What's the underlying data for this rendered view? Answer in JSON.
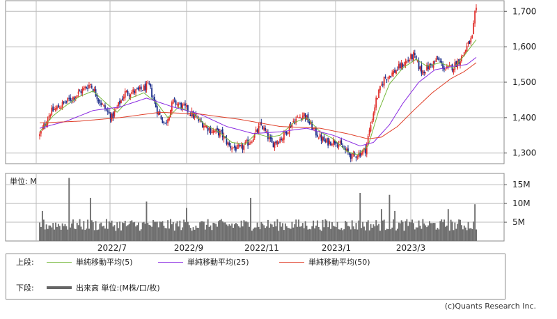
{
  "chart_data": [
    {
      "type": "candlestick",
      "y_ticks": [
        "1,700",
        "1,600",
        "1,500",
        "1,400",
        "1,300"
      ],
      "ylim": [
        1270,
        1730
      ],
      "x_ticks": [
        "2022/7",
        "2022/9",
        "2022/11",
        "2023/1",
        "2023/3"
      ],
      "grid": true,
      "colors": {
        "up": "#e0302c",
        "down": "#1a2c8a",
        "ma5": "#76b83b",
        "ma25": "#8a2be2",
        "ma50": "#e0402a"
      },
      "close_path": [
        [
          0,
          1350
        ],
        [
          8,
          1415
        ],
        [
          16,
          1435
        ],
        [
          26,
          1460
        ],
        [
          38,
          1495
        ],
        [
          46,
          1440
        ],
        [
          54,
          1400
        ],
        [
          64,
          1470
        ],
        [
          74,
          1475
        ],
        [
          82,
          1490
        ],
        [
          88,
          1420
        ],
        [
          94,
          1380
        ],
        [
          100,
          1445
        ],
        [
          110,
          1425
        ],
        [
          118,
          1395
        ],
        [
          128,
          1365
        ],
        [
          136,
          1355
        ],
        [
          142,
          1320
        ],
        [
          150,
          1310
        ],
        [
          158,
          1335
        ],
        [
          166,
          1380
        ],
        [
          174,
          1325
        ],
        [
          182,
          1345
        ],
        [
          190,
          1390
        ],
        [
          198,
          1410
        ],
        [
          206,
          1360
        ],
        [
          214,
          1330
        ],
        [
          222,
          1335
        ],
        [
          228,
          1310
        ],
        [
          234,
          1290
        ],
        [
          240,
          1300
        ],
        [
          244,
          1310
        ],
        [
          248,
          1380
        ],
        [
          252,
          1450
        ],
        [
          258,
          1510
        ],
        [
          264,
          1525
        ],
        [
          272,
          1550
        ],
        [
          280,
          1575
        ],
        [
          286,
          1530
        ],
        [
          292,
          1545
        ],
        [
          298,
          1565
        ],
        [
          304,
          1535
        ],
        [
          310,
          1545
        ],
        [
          316,
          1570
        ],
        [
          320,
          1600
        ],
        [
          324,
          1625
        ],
        [
          326,
          1690
        ],
        [
          327,
          1700
        ]
      ],
      "ma5_path": [
        [
          0,
          1360
        ],
        [
          10,
          1405
        ],
        [
          20,
          1435
        ],
        [
          30,
          1460
        ],
        [
          40,
          1475
        ],
        [
          50,
          1440
        ],
        [
          58,
          1415
        ],
        [
          68,
          1455
        ],
        [
          78,
          1470
        ],
        [
          88,
          1440
        ],
        [
          96,
          1400
        ],
        [
          104,
          1430
        ],
        [
          114,
          1415
        ],
        [
          124,
          1380
        ],
        [
          134,
          1360
        ],
        [
          144,
          1330
        ],
        [
          154,
          1325
        ],
        [
          162,
          1355
        ],
        [
          172,
          1345
        ],
        [
          180,
          1350
        ],
        [
          190,
          1385
        ],
        [
          200,
          1400
        ],
        [
          210,
          1360
        ],
        [
          220,
          1340
        ],
        [
          230,
          1305
        ],
        [
          238,
          1295
        ],
        [
          246,
          1320
        ],
        [
          254,
          1420
        ],
        [
          262,
          1495
        ],
        [
          272,
          1540
        ],
        [
          282,
          1565
        ],
        [
          290,
          1545
        ],
        [
          300,
          1555
        ],
        [
          310,
          1540
        ],
        [
          318,
          1575
        ],
        [
          327,
          1620
        ]
      ],
      "ma25_path": [
        [
          0,
          1370
        ],
        [
          20,
          1390
        ],
        [
          40,
          1420
        ],
        [
          60,
          1430
        ],
        [
          80,
          1455
        ],
        [
          100,
          1430
        ],
        [
          120,
          1410
        ],
        [
          140,
          1375
        ],
        [
          160,
          1355
        ],
        [
          180,
          1360
        ],
        [
          200,
          1370
        ],
        [
          220,
          1350
        ],
        [
          240,
          1320
        ],
        [
          250,
          1330
        ],
        [
          262,
          1380
        ],
        [
          272,
          1440
        ],
        [
          284,
          1500
        ],
        [
          296,
          1535
        ],
        [
          310,
          1545
        ],
        [
          320,
          1550
        ],
        [
          327,
          1570
        ]
      ],
      "ma50_path": [
        [
          0,
          1385
        ],
        [
          30,
          1390
        ],
        [
          60,
          1400
        ],
        [
          90,
          1415
        ],
        [
          120,
          1410
        ],
        [
          150,
          1395
        ],
        [
          180,
          1375
        ],
        [
          210,
          1370
        ],
        [
          230,
          1355
        ],
        [
          246,
          1340
        ],
        [
          256,
          1345
        ],
        [
          268,
          1375
        ],
        [
          280,
          1420
        ],
        [
          294,
          1470
        ],
        [
          308,
          1510
        ],
        [
          318,
          1530
        ],
        [
          327,
          1555
        ]
      ]
    },
    {
      "type": "bar",
      "unit_label": "単位: M",
      "y_ticks": [
        "15M",
        "10M",
        "5M"
      ],
      "ylim": [
        0,
        18
      ],
      "x_ticks": [
        "2022/7",
        "2022/9",
        "2022/11",
        "2023/1",
        "2023/3"
      ],
      "typical_volume": 4.5,
      "spikes": [
        [
          2,
          8.0
        ],
        [
          22,
          16.8
        ],
        [
          38,
          11.5
        ],
        [
          80,
          10.5
        ],
        [
          110,
          8.8
        ],
        [
          158,
          11.5
        ],
        [
          240,
          12.8
        ],
        [
          256,
          8.5
        ],
        [
          262,
          12.3
        ],
        [
          266,
          8.0
        ],
        [
          306,
          8.5
        ],
        [
          326,
          9.8
        ]
      ]
    }
  ],
  "legend": {
    "upper_label": "上段:",
    "lower_label": "下段:",
    "items": [
      {
        "name": "単純移動平均(5)",
        "color": "#76b83b"
      },
      {
        "name": "単純移動平均(25)",
        "color": "#8a2be2"
      },
      {
        "name": "単純移動平均(50)",
        "color": "#e0402a"
      }
    ],
    "volume_item": "出来高 単位:(M株/口/枚)"
  },
  "copyright": "(c)Quants Research Inc."
}
